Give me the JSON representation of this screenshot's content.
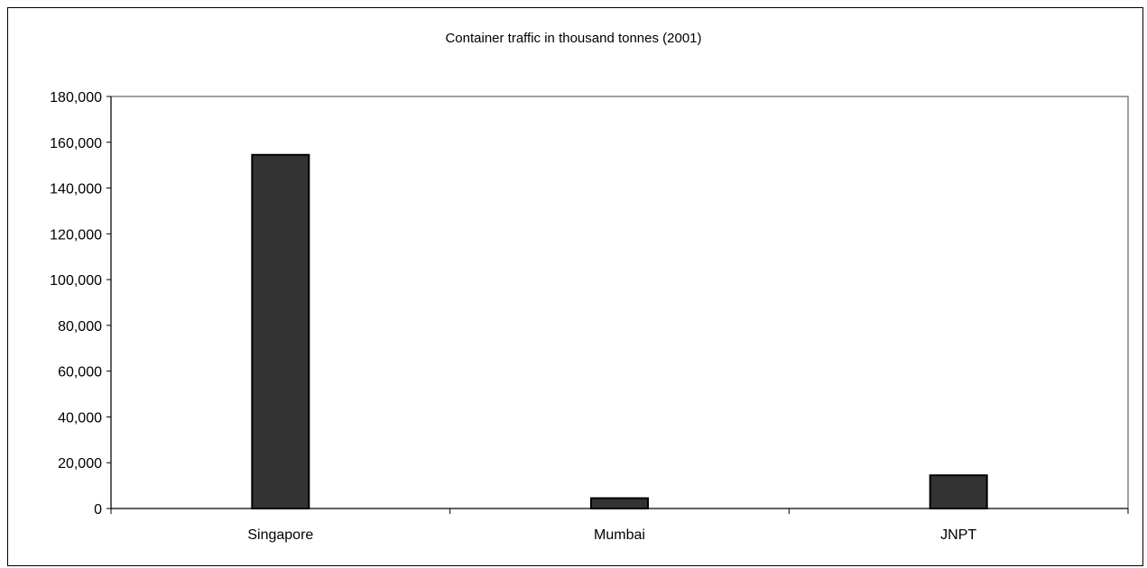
{
  "chart_data": {
    "type": "bar",
    "title": "Container traffic in thousand tonnes (2001)",
    "categories": [
      "Singapore",
      "Mumbai",
      "JNPT"
    ],
    "values": [
      154500,
      4500,
      14500
    ],
    "ylim": [
      0,
      180000
    ],
    "yticks": [
      0,
      20000,
      40000,
      60000,
      80000,
      100000,
      120000,
      140000,
      160000,
      180000
    ],
    "ytick_labels": [
      "0",
      "20,000",
      "40,000",
      "60,000",
      "80,000",
      "100,000",
      "120,000",
      "140,000",
      "160,000",
      "180,000"
    ],
    "xlabel": "",
    "ylabel": "",
    "grid": false,
    "legend": "none",
    "colors": {
      "bar_fill": "#333333",
      "bar_stroke": "#000000",
      "plot_border": "#808080",
      "background": "#ffffff"
    }
  }
}
